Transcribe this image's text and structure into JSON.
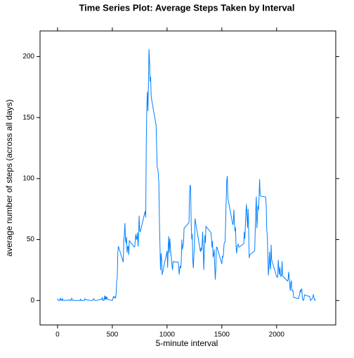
{
  "chart_data": {
    "type": "line",
    "title": "Time Series Plot: Average Steps Taken by Interval",
    "x_label": "5-minute interval",
    "y_label": "average number of steps (across all days)",
    "x": [
      0,
      5,
      10,
      15,
      20,
      25,
      30,
      35,
      40,
      45,
      50,
      55,
      100,
      105,
      110,
      115,
      120,
      125,
      130,
      135,
      140,
      145,
      150,
      155,
      200,
      205,
      210,
      215,
      220,
      225,
      230,
      235,
      240,
      245,
      250,
      255,
      300,
      305,
      310,
      315,
      320,
      325,
      330,
      335,
      340,
      345,
      350,
      355,
      400,
      405,
      410,
      415,
      420,
      425,
      430,
      435,
      440,
      445,
      450,
      455,
      500,
      505,
      510,
      515,
      520,
      525,
      530,
      535,
      540,
      545,
      550,
      555,
      600,
      605,
      610,
      615,
      620,
      625,
      630,
      635,
      640,
      645,
      650,
      655,
      700,
      705,
      710,
      715,
      720,
      725,
      730,
      735,
      740,
      745,
      750,
      755,
      800,
      805,
      810,
      815,
      820,
      825,
      830,
      835,
      840,
      845,
      850,
      855,
      900,
      905,
      910,
      915,
      920,
      925,
      930,
      935,
      940,
      945,
      950,
      955,
      1000,
      1005,
      1010,
      1015,
      1020,
      1025,
      1030,
      1035,
      1040,
      1045,
      1050,
      1055,
      1100,
      1105,
      1110,
      1115,
      1120,
      1125,
      1130,
      1135,
      1140,
      1145,
      1150,
      1155,
      1200,
      1205,
      1210,
      1215,
      1220,
      1225,
      1230,
      1235,
      1240,
      1245,
      1250,
      1255,
      1300,
      1305,
      1310,
      1315,
      1320,
      1325,
      1330,
      1335,
      1340,
      1345,
      1350,
      1355,
      1400,
      1405,
      1410,
      1415,
      1420,
      1425,
      1430,
      1435,
      1440,
      1445,
      1450,
      1455,
      1500,
      1505,
      1510,
      1515,
      1520,
      1525,
      1530,
      1535,
      1540,
      1545,
      1550,
      1555,
      1600,
      1605,
      1610,
      1615,
      1620,
      1625,
      1630,
      1635,
      1640,
      1645,
      1650,
      1655,
      1700,
      1705,
      1710,
      1715,
      1720,
      1725,
      1730,
      1735,
      1740,
      1745,
      1750,
      1755,
      1800,
      1805,
      1810,
      1815,
      1820,
      1825,
      1830,
      1835,
      1840,
      1845,
      1850,
      1855,
      1900,
      1905,
      1910,
      1915,
      1920,
      1925,
      1930,
      1935,
      1940,
      1945,
      1950,
      1955,
      2000,
      2005,
      2010,
      2015,
      2020,
      2025,
      2030,
      2035,
      2040,
      2045,
      2050,
      2055,
      2100,
      2105,
      2110,
      2115,
      2120,
      2125,
      2130,
      2135,
      2140,
      2145,
      2150,
      2155,
      2200,
      2205,
      2210,
      2215,
      2220,
      2225,
      2230,
      2235,
      2240,
      2245,
      2250,
      2255,
      2300,
      2305,
      2310,
      2315,
      2320,
      2325,
      2330,
      2335,
      2340,
      2345,
      2350,
      2355
    ],
    "series": [
      {
        "color": "#0080ff",
        "values": [
          1.7,
          0.3,
          0.1,
          0.2,
          0.1,
          2.1,
          0.5,
          0.9,
          0,
          1.5,
          0.3,
          0.1,
          0.3,
          0.7,
          0.2,
          0.3,
          0,
          1.1,
          1.8,
          0.2,
          0.2,
          0.4,
          0.3,
          0,
          0,
          0,
          1.1,
          0,
          0,
          0.1,
          0,
          0.2,
          0,
          0,
          1.5,
          0.9,
          0,
          0,
          0,
          0,
          0.2,
          0.6,
          1.6,
          0.6,
          0.5,
          0.1,
          0,
          0,
          1.2,
          0.9,
          2.6,
          0,
          0.3,
          0.4,
          4.1,
          0.7,
          3.5,
          0.8,
          3.1,
          1.1,
          0,
          1.6,
          3.0,
          2.2,
          3.3,
          3.0,
          2.1,
          6.1,
          16.0,
          18.3,
          39.5,
          44.5,
          31.5,
          49.3,
          53.8,
          63.5,
          50.0,
          47.1,
          52.2,
          39.3,
          44.0,
          44.2,
          37.4,
          49.0,
          43.8,
          44.4,
          50.5,
          54.5,
          49.9,
          51.0,
          55.7,
          44.3,
          52.3,
          69.5,
          57.8,
          56.2,
          73.4,
          68.2,
          129.4,
          157.5,
          171.2,
          155.4,
          177.3,
          206.2,
          195.9,
          179.6,
          183.4,
          167.0,
          143.5,
          124.0,
          109.1,
          108.1,
          103.7,
          96.0,
          66.2,
          45.2,
          24.8,
          38.8,
          35.0,
          21.1,
          40.6,
          27.0,
          42.4,
          52.7,
          38.9,
          50.8,
          44.3,
          37.4,
          34.7,
          28.3,
          25.1,
          31.9,
          31.4,
          29.7,
          21.3,
          25.5,
          28.4,
          26.5,
          33.4,
          50.0,
          42.0,
          44.6,
          46.0,
          59.2,
          63.9,
          87.7,
          94.8,
          92.8,
          63.4,
          50.2,
          54.5,
          32.4,
          26.5,
          37.7,
          45.1,
          67.3,
          42.3,
          39.9,
          43.3,
          41.0,
          46.2,
          56.4,
          42.8,
          25.1,
          40.0,
          53.5,
          47.3,
          60.8,
          55.8,
          52.0,
          43.6,
          48.7,
          35.5,
          37.5,
          41.8,
          27.5,
          17.1,
          26.1,
          43.6,
          43.8,
          30.0,
          36.1,
          35.5,
          38.8,
          46.0,
          47.8,
          48.1,
          65.3,
          82.9,
          98.7,
          102.1,
          84.0,
          62.1,
          64.1,
          74.5,
          63.2,
          56.9,
          59.8,
          43.9,
          38.6,
          44.7,
          45.5,
          46.2,
          43.7,
          46.6,
          56.3,
          50.7,
          61.2,
          72.7,
          78.9,
          68.9,
          59.7,
          75.1,
          56.5,
          34.8,
          37.5,
          40.7,
          58.0,
          74.7,
          85.3,
          59.3,
          67.8,
          77.7,
          74.2,
          85.3,
          99.5,
          86.6,
          85.6,
          84.9,
          77.8,
          58.0,
          53.4,
          36.3,
          20.7,
          27.4,
          40.0,
          30.2,
          25.5,
          45.7,
          33.5,
          19.6,
          19.0,
          19.3,
          33.3,
          26.8,
          21.2,
          27.3,
          21.3,
          19.5,
          21.3,
          32.3,
          20.2,
          15.9,
          17.2,
          23.5,
          19.2,
          12.5,
          8.0,
          14.7,
          16.3,
          8.7,
          7.8,
          8.1,
          2.6,
          1.5,
          3.7,
          4.8,
          8.5,
          7.1,
          8.7,
          9.8,
          2.2,
          0.3,
          0.1,
          1.6,
          4.6,
          3.3,
          2.8,
          0,
          0.8,
          1.0,
          1.6,
          2.6,
          4.7,
          3.3,
          0.6,
          0.2,
          1.1
        ]
      }
    ],
    "xlim": [
      -160,
      2540
    ],
    "xticks": [
      0,
      500,
      1000,
      1500,
      2000
    ],
    "ylim": [
      -20,
      221
    ],
    "yticks": [
      0,
      50,
      100,
      150,
      200
    ]
  }
}
